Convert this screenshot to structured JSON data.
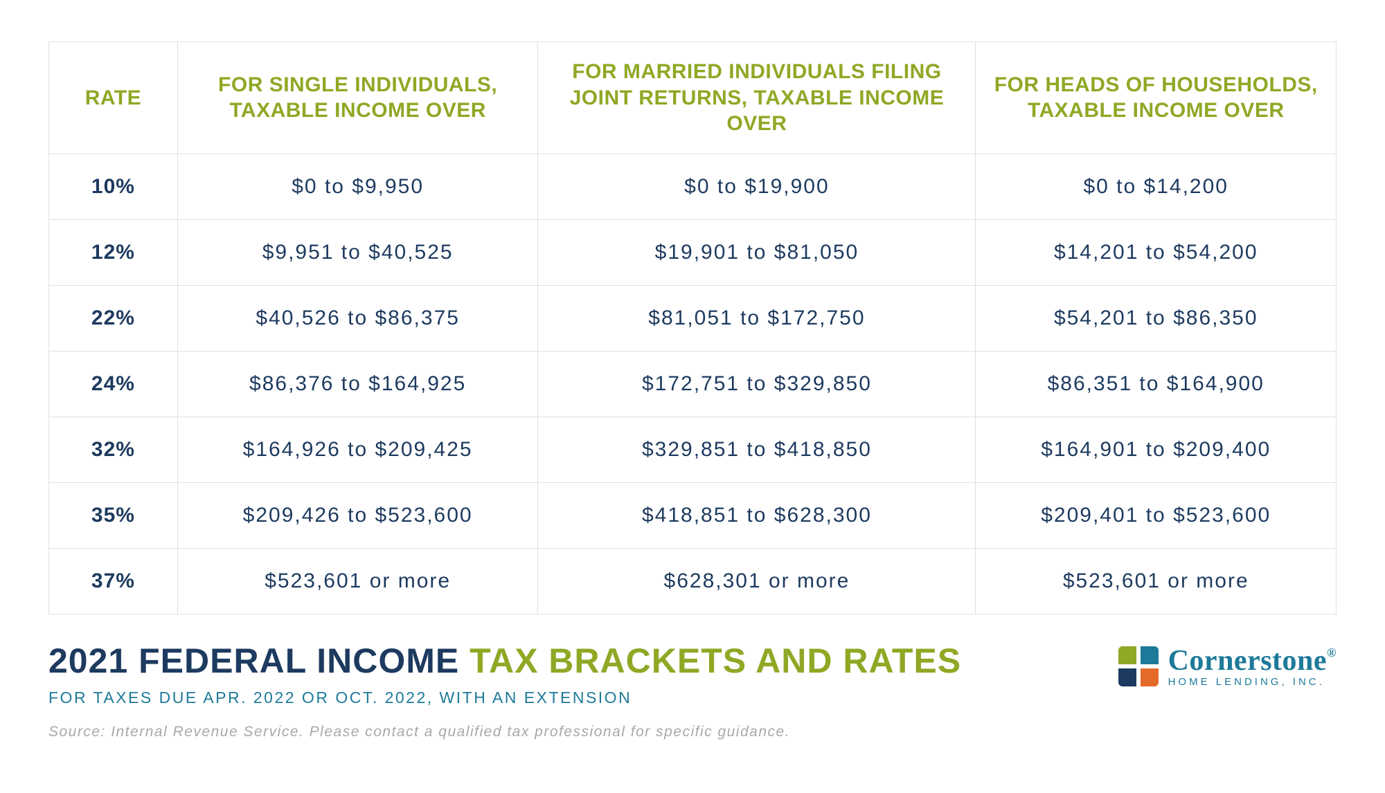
{
  "table": {
    "type": "table",
    "columns": [
      {
        "key": "rate",
        "label": "RATE"
      },
      {
        "key": "single",
        "label": "FOR SINGLE INDIVIDUALS, TAXABLE INCOME OVER"
      },
      {
        "key": "joint",
        "label": "FOR MARRIED INDIVIDUALS FILING JOINT RETURNS, TAXABLE INCOME OVER"
      },
      {
        "key": "head",
        "label": "FOR HEADS OF HOUSEHOLDS, TAXABLE INCOME OVER"
      }
    ],
    "rows": [
      {
        "rate": "10%",
        "single": "$0 to $9,950",
        "joint": "$0 to $19,900",
        "head": "$0 to $14,200"
      },
      {
        "rate": "12%",
        "single": "$9,951 to $40,525",
        "joint": "$19,901 to $81,050",
        "head": "$14,201 to $54,200"
      },
      {
        "rate": "22%",
        "single": "$40,526 to $86,375",
        "joint": "$81,051 to $172,750",
        "head": "$54,201 to $86,350"
      },
      {
        "rate": "24%",
        "single": "$86,376 to $164,925",
        "joint": "$172,751 to $329,850",
        "head": "$86,351 to $164,900"
      },
      {
        "rate": "32%",
        "single": "$164,926 to $209,425",
        "joint": "$329,851 to $418,850",
        "head": "$164,901 to $209,400"
      },
      {
        "rate": "35%",
        "single": "$209,426 to $523,600",
        "joint": "$418,851 to $628,300",
        "head": "$209,401 to $523,600"
      },
      {
        "rate": "37%",
        "single": "$523,601 or more",
        "joint": "$628,301 or more",
        "head": "$523,601 or more"
      }
    ],
    "header_color": "#8fa825",
    "body_text_color": "#1d3a5f",
    "border_color": "#e0e0e0",
    "background_color": "#ffffff",
    "header_fontsize": 30,
    "body_fontsize": 30,
    "column_widths_pct": [
      10,
      28,
      34,
      28
    ]
  },
  "footer": {
    "title_part1": "2021 FEDERAL INCOME ",
    "title_part2": "TAX BRACKETS AND RATES",
    "title_color_dark": "#1d3a5f",
    "title_color_green": "#8fa825",
    "title_fontsize": 50,
    "subtitle": "FOR TAXES DUE APR. 2022 OR OCT. 2022, WITH AN EXTENSION",
    "subtitle_color": "#1d7a99",
    "subtitle_fontsize": 23,
    "source": "Source: Internal Revenue Service. Please contact a qualified tax professional for specific guidance.",
    "source_color": "#a8a8a8",
    "source_fontsize": 21
  },
  "logo": {
    "name": "Cornerstone",
    "registered": "®",
    "subline": "HOME LENDING, INC.",
    "text_color": "#1d7a99",
    "mark_colors": {
      "tl": "#8fa825",
      "tr": "#1d7a99",
      "bl": "#1d3a5f",
      "br": "#e46a2a"
    }
  }
}
